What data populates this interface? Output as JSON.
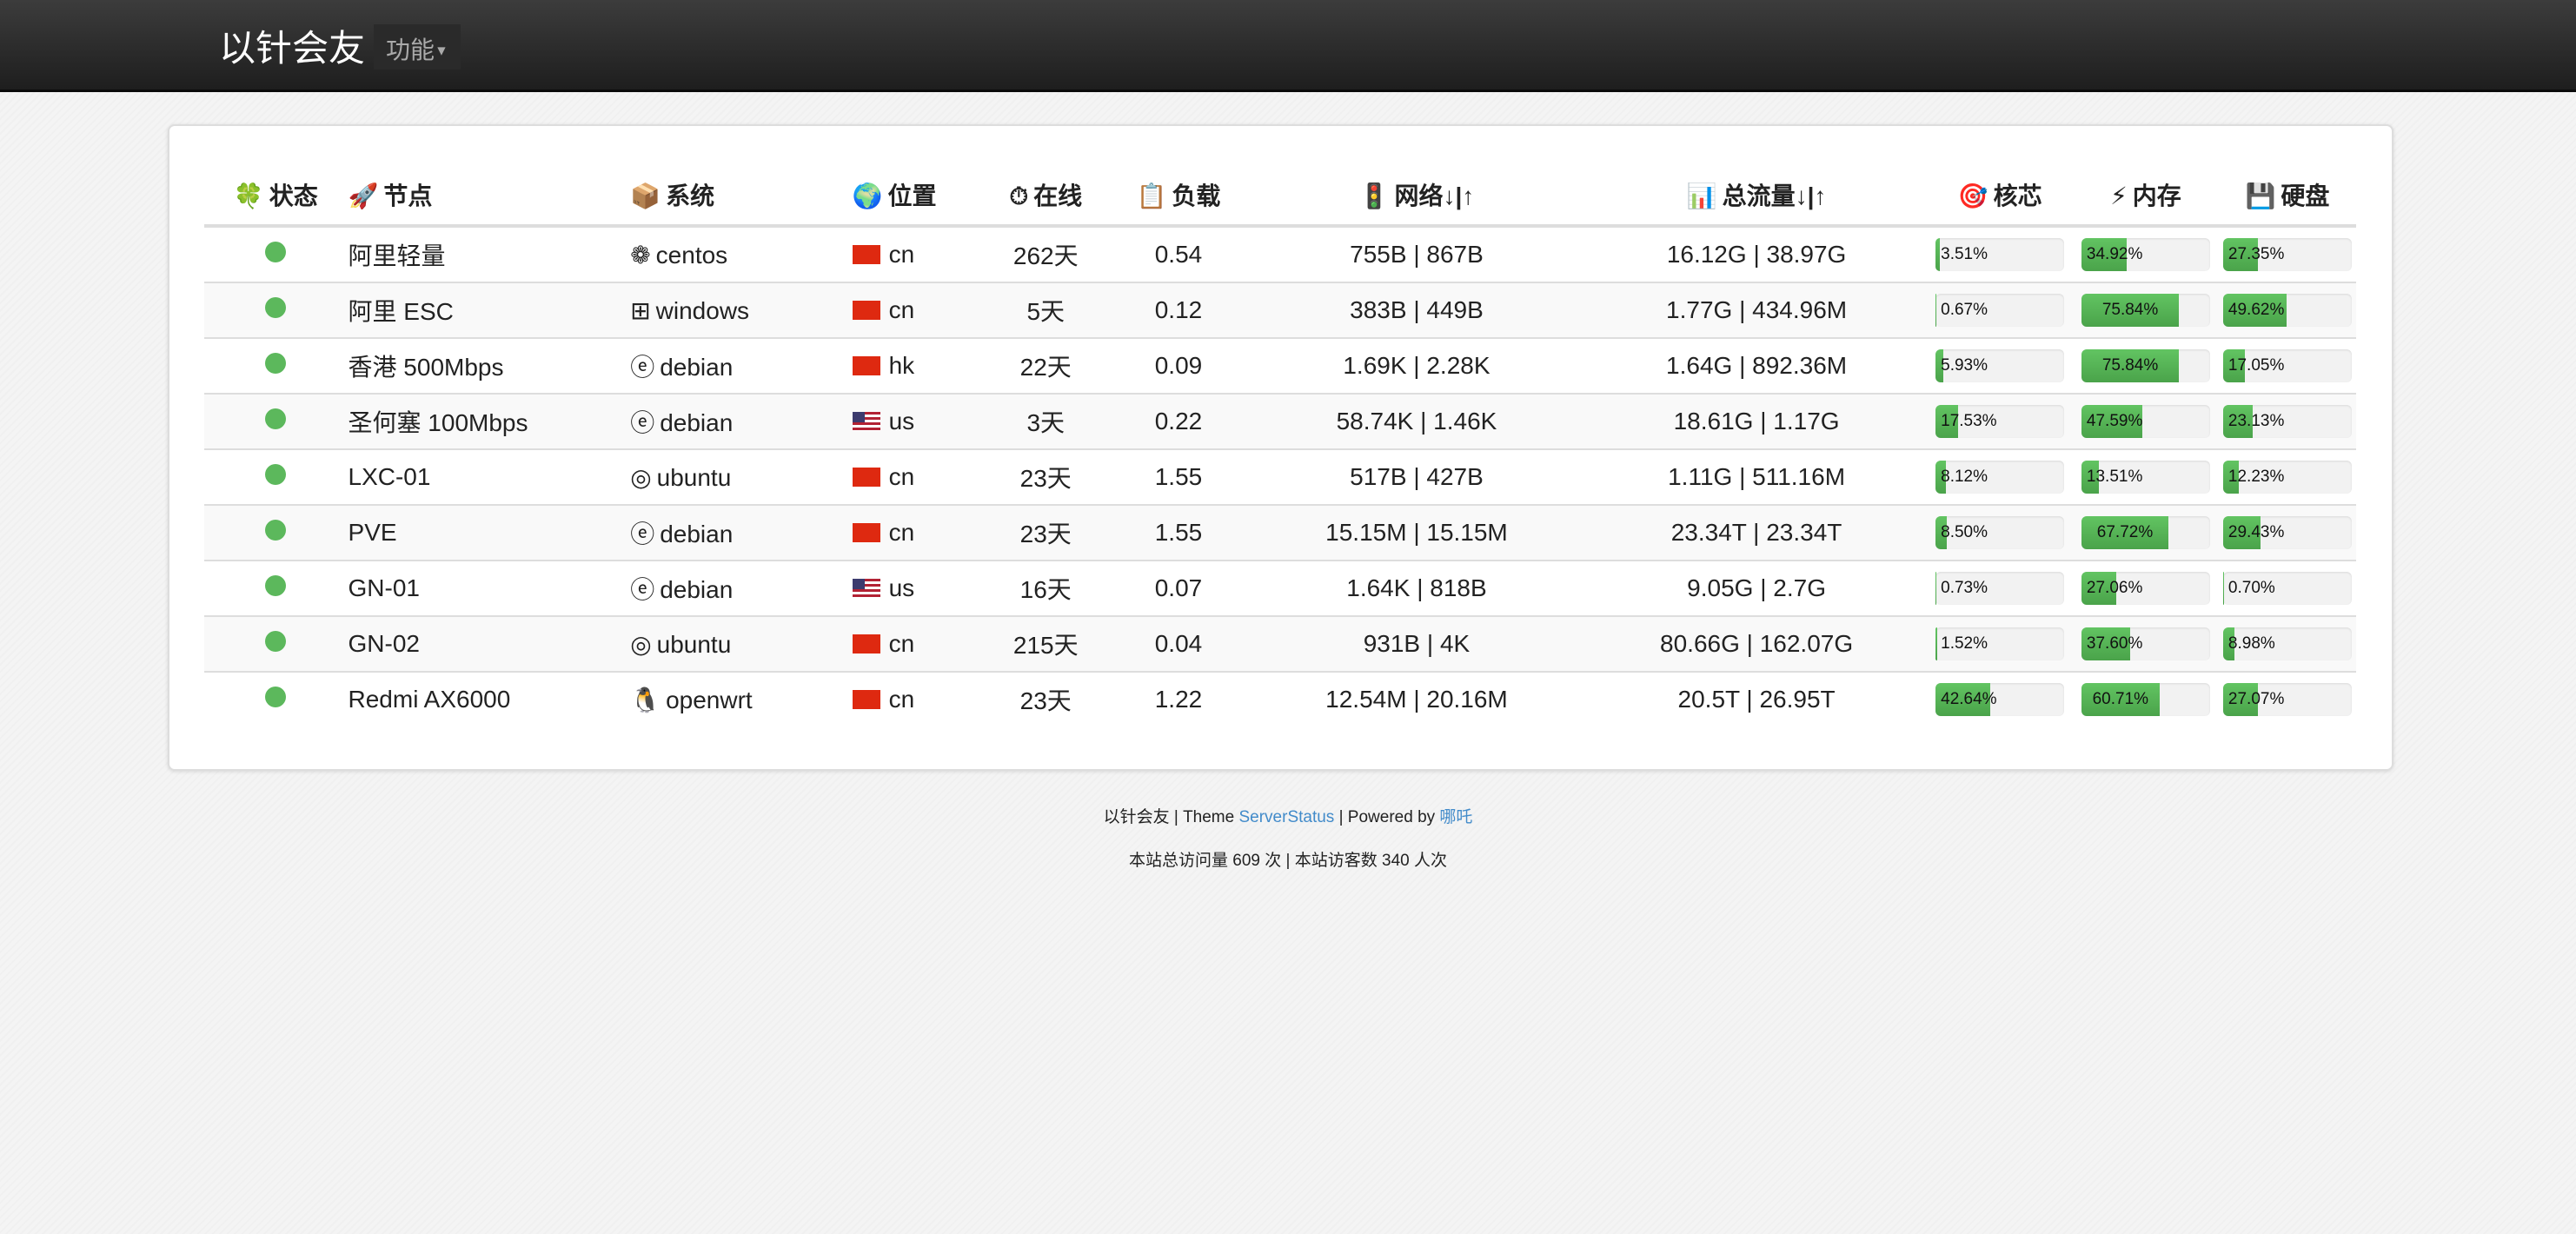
{
  "navbar": {
    "brand": "以针会友",
    "menu_label": "功能"
  },
  "colors": {
    "online": "#5cb85c",
    "bar": "#4aa34a",
    "link": "#428bca"
  },
  "table": {
    "headers": [
      {
        "icon": "four-leaf-clover-icon",
        "glyph": "🍀",
        "label": "状态"
      },
      {
        "icon": "rocket-icon",
        "glyph": "🚀",
        "label": "节点"
      },
      {
        "icon": "package-icon",
        "glyph": "📦",
        "label": "系统"
      },
      {
        "icon": "globe-icon",
        "glyph": "🌍",
        "label": "位置"
      },
      {
        "icon": "stopwatch-icon",
        "glyph": "⏱",
        "label": "在线"
      },
      {
        "icon": "clipboard-icon",
        "glyph": "📋",
        "label": "负载"
      },
      {
        "icon": "traffic-light-icon",
        "glyph": "🚦",
        "label": "网络↓|↑"
      },
      {
        "icon": "bar-chart-icon",
        "glyph": "📊",
        "label": "总流量↓|↑"
      },
      {
        "icon": "target-icon",
        "glyph": "🎯",
        "label": "核芯"
      },
      {
        "icon": "lightning-icon",
        "glyph": "⚡",
        "label": "内存"
      },
      {
        "icon": "floppy-disk-icon",
        "glyph": "💾",
        "label": "硬盘"
      }
    ],
    "rows": [
      {
        "status": "online",
        "node": "阿里轻量",
        "os_icon": "centos-icon",
        "os_glyph": "❁",
        "os": "centos",
        "flag": "cn",
        "location": "cn",
        "uptime": "262天",
        "load": "0.54",
        "network": "755B | 867B",
        "traffic": "16.12G | 38.97G",
        "cpu": 3.51,
        "cpu_label": "3.51%",
        "mem": 34.92,
        "mem_label": "34.92%",
        "disk": 27.35,
        "disk_label": "27.35%"
      },
      {
        "status": "online",
        "node": "阿里 ESC",
        "os_icon": "windows-icon",
        "os_glyph": "⊞",
        "os": "windows",
        "flag": "cn",
        "location": "cn",
        "uptime": "5天",
        "load": "0.12",
        "network": "383B | 449B",
        "traffic": "1.77G | 434.96M",
        "cpu": 0.67,
        "cpu_label": "0.67%",
        "mem": 75.84,
        "mem_label": "75.84%",
        "disk": 49.62,
        "disk_label": "49.62%"
      },
      {
        "status": "online",
        "node": "香港 500Mbps",
        "os_icon": "debian-icon",
        "os_glyph": "ⓔ",
        "os": "debian",
        "flag": "hk",
        "location": "hk",
        "uptime": "22天",
        "load": "0.09",
        "network": "1.69K | 2.28K",
        "traffic": "1.64G | 892.36M",
        "cpu": 5.93,
        "cpu_label": "5.93%",
        "mem": 75.84,
        "mem_label": "75.84%",
        "disk": 17.05,
        "disk_label": "17.05%"
      },
      {
        "status": "online",
        "node": "圣何塞 100Mbps",
        "os_icon": "debian-icon",
        "os_glyph": "ⓔ",
        "os": "debian",
        "flag": "us",
        "location": "us",
        "uptime": "3天",
        "load": "0.22",
        "network": "58.74K | 1.46K",
        "traffic": "18.61G | 1.17G",
        "cpu": 17.53,
        "cpu_label": "17.53%",
        "mem": 47.59,
        "mem_label": "47.59%",
        "disk": 23.13,
        "disk_label": "23.13%"
      },
      {
        "status": "online",
        "node": "LXC-01",
        "os_icon": "ubuntu-icon",
        "os_glyph": "◎",
        "os": "ubuntu",
        "flag": "cn",
        "location": "cn",
        "uptime": "23天",
        "load": "1.55",
        "network": "517B | 427B",
        "traffic": "1.11G | 511.16M",
        "cpu": 8.12,
        "cpu_label": "8.12%",
        "mem": 13.51,
        "mem_label": "13.51%",
        "disk": 12.23,
        "disk_label": "12.23%"
      },
      {
        "status": "online",
        "node": "PVE",
        "os_icon": "debian-icon",
        "os_glyph": "ⓔ",
        "os": "debian",
        "flag": "cn",
        "location": "cn",
        "uptime": "23天",
        "load": "1.55",
        "network": "15.15M | 15.15M",
        "traffic": "23.34T | 23.34T",
        "cpu": 8.5,
        "cpu_label": "8.50%",
        "mem": 67.72,
        "mem_label": "67.72%",
        "disk": 29.43,
        "disk_label": "29.43%"
      },
      {
        "status": "online",
        "node": "GN-01",
        "os_icon": "debian-icon",
        "os_glyph": "ⓔ",
        "os": "debian",
        "flag": "us",
        "location": "us",
        "uptime": "16天",
        "load": "0.07",
        "network": "1.64K | 818B",
        "traffic": "9.05G | 2.7G",
        "cpu": 0.73,
        "cpu_label": "0.73%",
        "mem": 27.06,
        "mem_label": "27.06%",
        "disk": 0.7,
        "disk_label": "0.70%"
      },
      {
        "status": "online",
        "node": "GN-02",
        "os_icon": "ubuntu-icon",
        "os_glyph": "◎",
        "os": "ubuntu",
        "flag": "cn",
        "location": "cn",
        "uptime": "215天",
        "load": "0.04",
        "network": "931B | 4K",
        "traffic": "80.66G | 162.07G",
        "cpu": 1.52,
        "cpu_label": "1.52%",
        "mem": 37.6,
        "mem_label": "37.60%",
        "disk": 8.98,
        "disk_label": "8.98%"
      },
      {
        "status": "online",
        "node": "Redmi AX6000",
        "os_icon": "linux-penguin-icon",
        "os_glyph": "🐧",
        "os": "openwrt",
        "flag": "cn",
        "location": "cn",
        "uptime": "23天",
        "load": "1.22",
        "network": "12.54M | 20.16M",
        "traffic": "20.5T | 26.95T",
        "cpu": 42.64,
        "cpu_label": "42.64%",
        "mem": 60.71,
        "mem_label": "60.71%",
        "disk": 27.07,
        "disk_label": "27.07%"
      }
    ]
  },
  "footer": {
    "site": "以针会友",
    "sep1": " | Theme ",
    "theme_link": "ServerStatus",
    "sep2": " | Powered by ",
    "powered_link": "哪吒",
    "stats": "本站总访问量 609 次 | 本站访客数 340 人次"
  }
}
